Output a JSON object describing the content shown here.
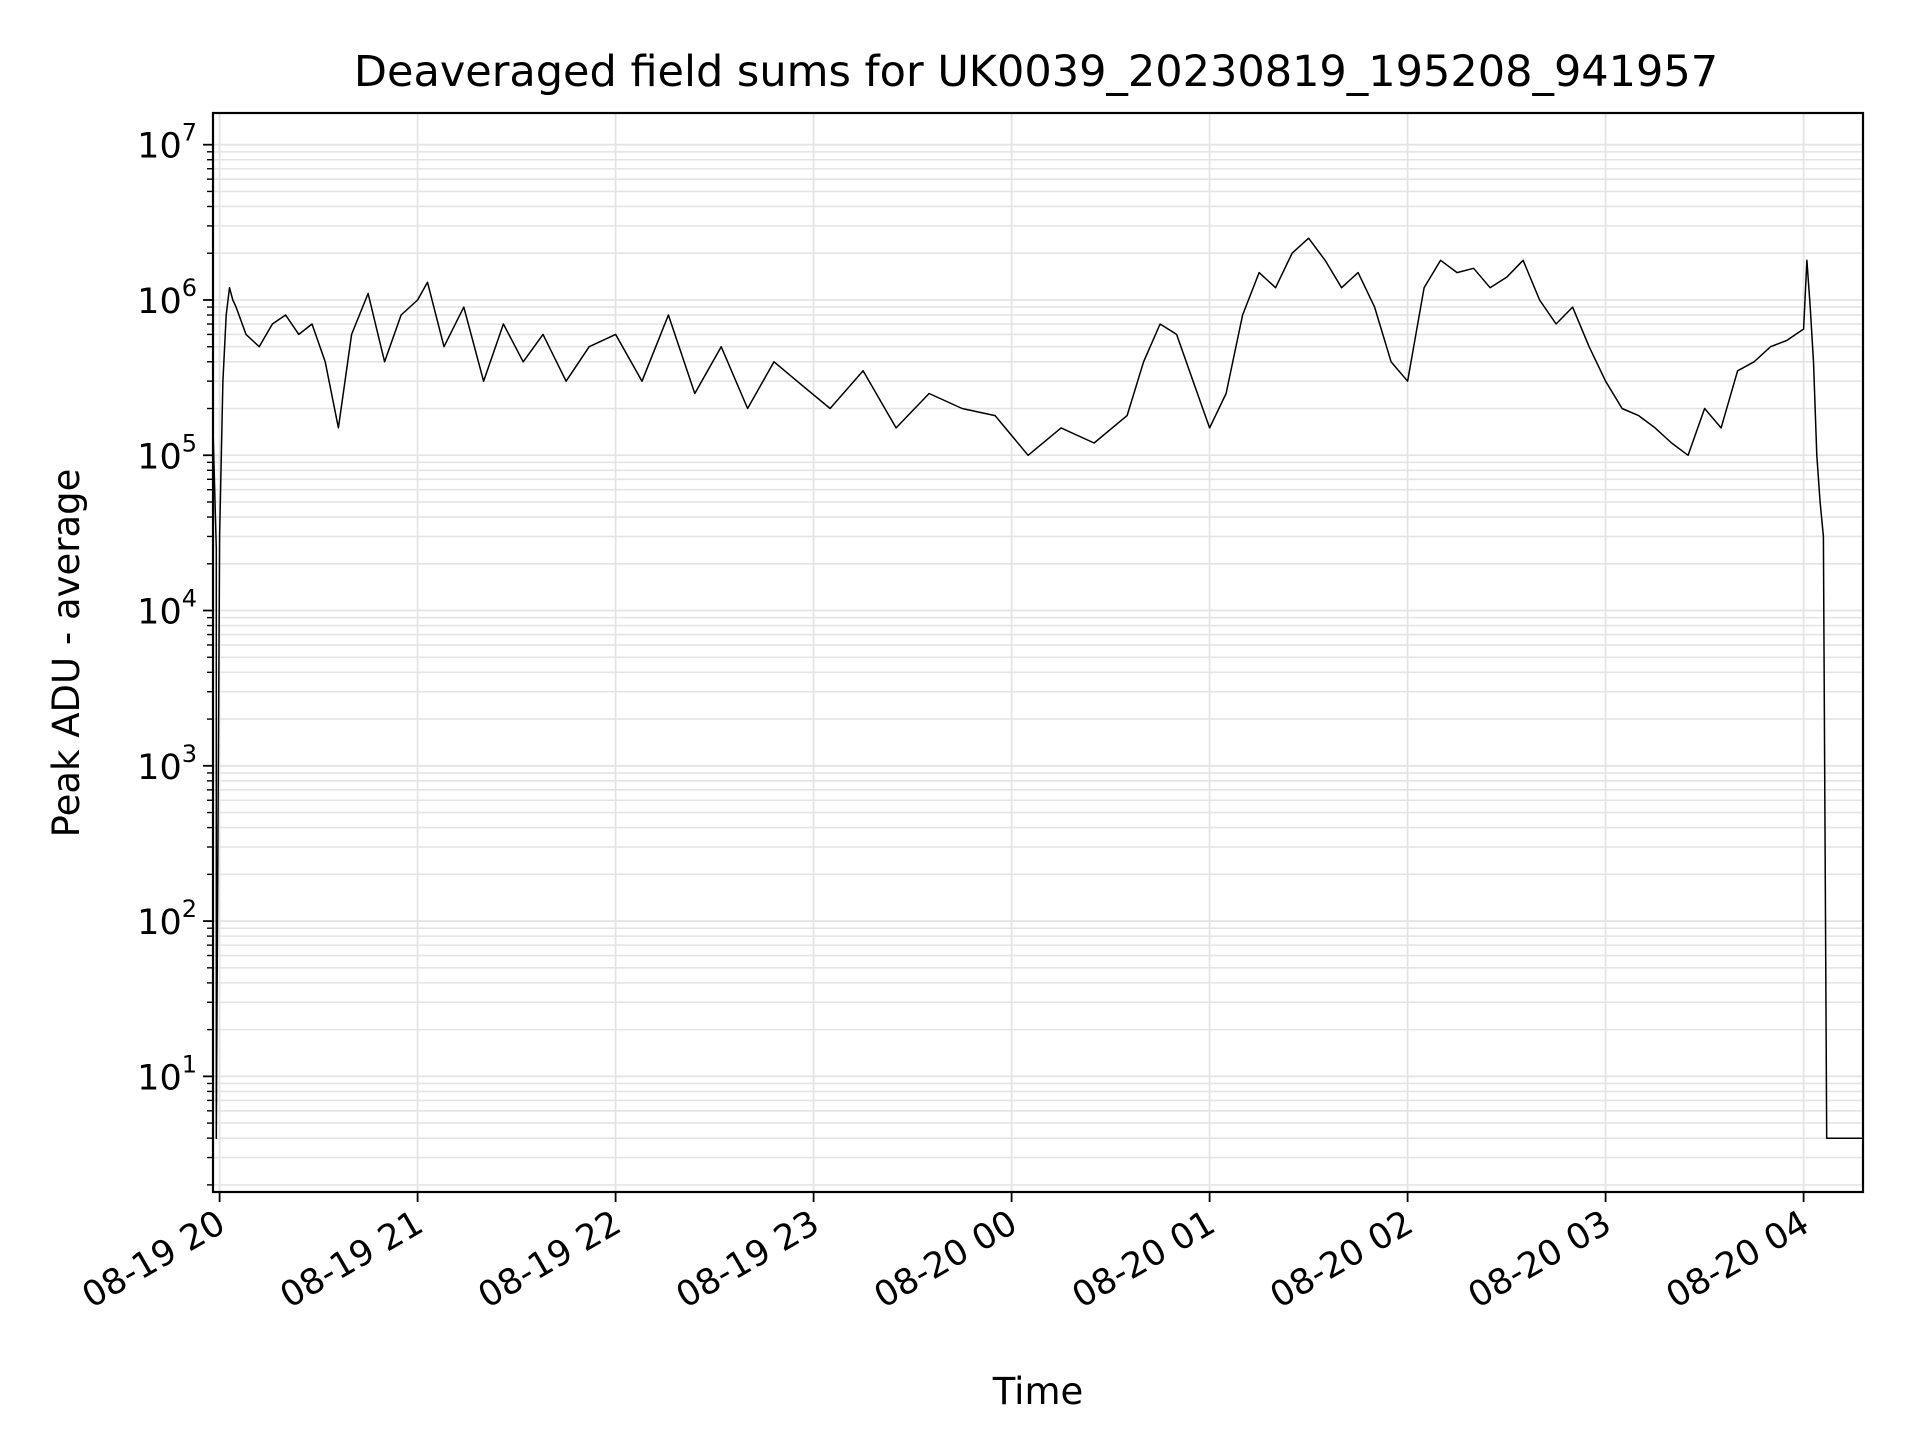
{
  "chart_data": {
    "type": "line",
    "title": "Deaveraged field sums for UK0039_20230819_195208_941957",
    "xlabel": "Time",
    "ylabel": "Peak ADU - average",
    "y_scale": "log",
    "ylim": [
      1.8,
      16000000
    ],
    "xlim": [
      "2023-08-19 19:58",
      "2023-08-20 04:18"
    ],
    "grid": true,
    "x_ticks": [
      {
        "time": "2023-08-19 20:00",
        "label": "08-19 20"
      },
      {
        "time": "2023-08-19 21:00",
        "label": "08-19 21"
      },
      {
        "time": "2023-08-19 22:00",
        "label": "08-19 22"
      },
      {
        "time": "2023-08-19 23:00",
        "label": "08-19 23"
      },
      {
        "time": "2023-08-20 00:00",
        "label": "08-20 00"
      },
      {
        "time": "2023-08-20 01:00",
        "label": "08-20 01"
      },
      {
        "time": "2023-08-20 02:00",
        "label": "08-20 02"
      },
      {
        "time": "2023-08-20 03:00",
        "label": "08-20 03"
      },
      {
        "time": "2023-08-20 04:00",
        "label": "08-20 04"
      }
    ],
    "y_ticks": [
      {
        "value": 10,
        "base": "10",
        "exp": "1"
      },
      {
        "value": 100,
        "base": "10",
        "exp": "2"
      },
      {
        "value": 1000,
        "base": "10",
        "exp": "3"
      },
      {
        "value": 10000,
        "base": "10",
        "exp": "4"
      },
      {
        "value": 100000,
        "base": "10",
        "exp": "5"
      },
      {
        "value": 1000000,
        "base": "10",
        "exp": "6"
      },
      {
        "value": 10000000,
        "base": "10",
        "exp": "7"
      }
    ],
    "series": [
      {
        "color": "#000000",
        "x": [
          "2023-08-19 19:58",
          "2023-08-19 19:58",
          "2023-08-19 19:59",
          "2023-08-19 19:59",
          "2023-08-19 20:00",
          "2023-08-19 20:01",
          "2023-08-19 20:02",
          "2023-08-19 20:03",
          "2023-08-19 20:04",
          "2023-08-19 20:05",
          "2023-08-19 20:08",
          "2023-08-19 20:12",
          "2023-08-19 20:16",
          "2023-08-19 20:20",
          "2023-08-19 20:24",
          "2023-08-19 20:28",
          "2023-08-19 20:32",
          "2023-08-19 20:36",
          "2023-08-19 20:40",
          "2023-08-19 20:45",
          "2023-08-19 20:50",
          "2023-08-19 20:55",
          "2023-08-19 21:00",
          "2023-08-19 21:03",
          "2023-08-19 21:08",
          "2023-08-19 21:14",
          "2023-08-19 21:20",
          "2023-08-19 21:26",
          "2023-08-19 21:32",
          "2023-08-19 21:38",
          "2023-08-19 21:45",
          "2023-08-19 21:52",
          "2023-08-19 22:00",
          "2023-08-19 22:08",
          "2023-08-19 22:16",
          "2023-08-19 22:24",
          "2023-08-19 22:32",
          "2023-08-19 22:40",
          "2023-08-19 22:48",
          "2023-08-19 22:55",
          "2023-08-19 23:05",
          "2023-08-19 23:15",
          "2023-08-19 23:25",
          "2023-08-19 23:35",
          "2023-08-19 23:45",
          "2023-08-19 23:55",
          "2023-08-20 00:05",
          "2023-08-20 00:15",
          "2023-08-20 00:25",
          "2023-08-20 00:35",
          "2023-08-20 00:40",
          "2023-08-20 00:45",
          "2023-08-20 00:50",
          "2023-08-20 00:55",
          "2023-08-20 01:00",
          "2023-08-20 01:05",
          "2023-08-20 01:10",
          "2023-08-20 01:15",
          "2023-08-20 01:20",
          "2023-08-20 01:25",
          "2023-08-20 01:30",
          "2023-08-20 01:35",
          "2023-08-20 01:40",
          "2023-08-20 01:45",
          "2023-08-20 01:50",
          "2023-08-20 01:55",
          "2023-08-20 02:00",
          "2023-08-20 02:05",
          "2023-08-20 02:10",
          "2023-08-20 02:15",
          "2023-08-20 02:20",
          "2023-08-20 02:25",
          "2023-08-20 02:30",
          "2023-08-20 02:35",
          "2023-08-20 02:40",
          "2023-08-20 02:45",
          "2023-08-20 02:50",
          "2023-08-20 02:55",
          "2023-08-20 03:00",
          "2023-08-20 03:05",
          "2023-08-20 03:10",
          "2023-08-20 03:15",
          "2023-08-20 03:20",
          "2023-08-20 03:25",
          "2023-08-20 03:30",
          "2023-08-20 03:35",
          "2023-08-20 03:40",
          "2023-08-20 03:45",
          "2023-08-20 03:50",
          "2023-08-20 03:55",
          "2023-08-20 04:00",
          "2023-08-20 04:01",
          "2023-08-20 04:02",
          "2023-08-20 04:03",
          "2023-08-20 04:04",
          "2023-08-20 04:05",
          "2023-08-20 04:06",
          "2023-08-20 04:07",
          "2023-08-20 04:08",
          "2023-08-20 04:12",
          "2023-08-20 04:18"
        ],
        "y": [
          2,
          150000,
          25000,
          4,
          30000,
          300000,
          800000,
          1200000,
          1000000,
          900000,
          600000,
          500000,
          700000,
          800000,
          600000,
          700000,
          400000,
          150000,
          600000,
          1100000,
          400000,
          800000,
          1000000,
          1300000,
          500000,
          900000,
          300000,
          700000,
          400000,
          600000,
          300000,
          500000,
          600000,
          300000,
          800000,
          250000,
          500000,
          200000,
          400000,
          300000,
          200000,
          350000,
          150000,
          250000,
          200000,
          180000,
          100000,
          150000,
          120000,
          180000,
          400000,
          700000,
          600000,
          300000,
          150000,
          250000,
          800000,
          1500000,
          1200000,
          2000000,
          2500000,
          1800000,
          1200000,
          1500000,
          900000,
          400000,
          300000,
          1200000,
          1800000,
          1500000,
          1600000,
          1200000,
          1400000,
          1800000,
          1000000,
          700000,
          900000,
          500000,
          300000,
          200000,
          180000,
          150000,
          120000,
          100000,
          200000,
          150000,
          350000,
          400000,
          500000,
          550000,
          650000,
          1800000,
          900000,
          400000,
          100000,
          50000,
          30000,
          4,
          4,
          4,
          4
        ]
      }
    ]
  }
}
